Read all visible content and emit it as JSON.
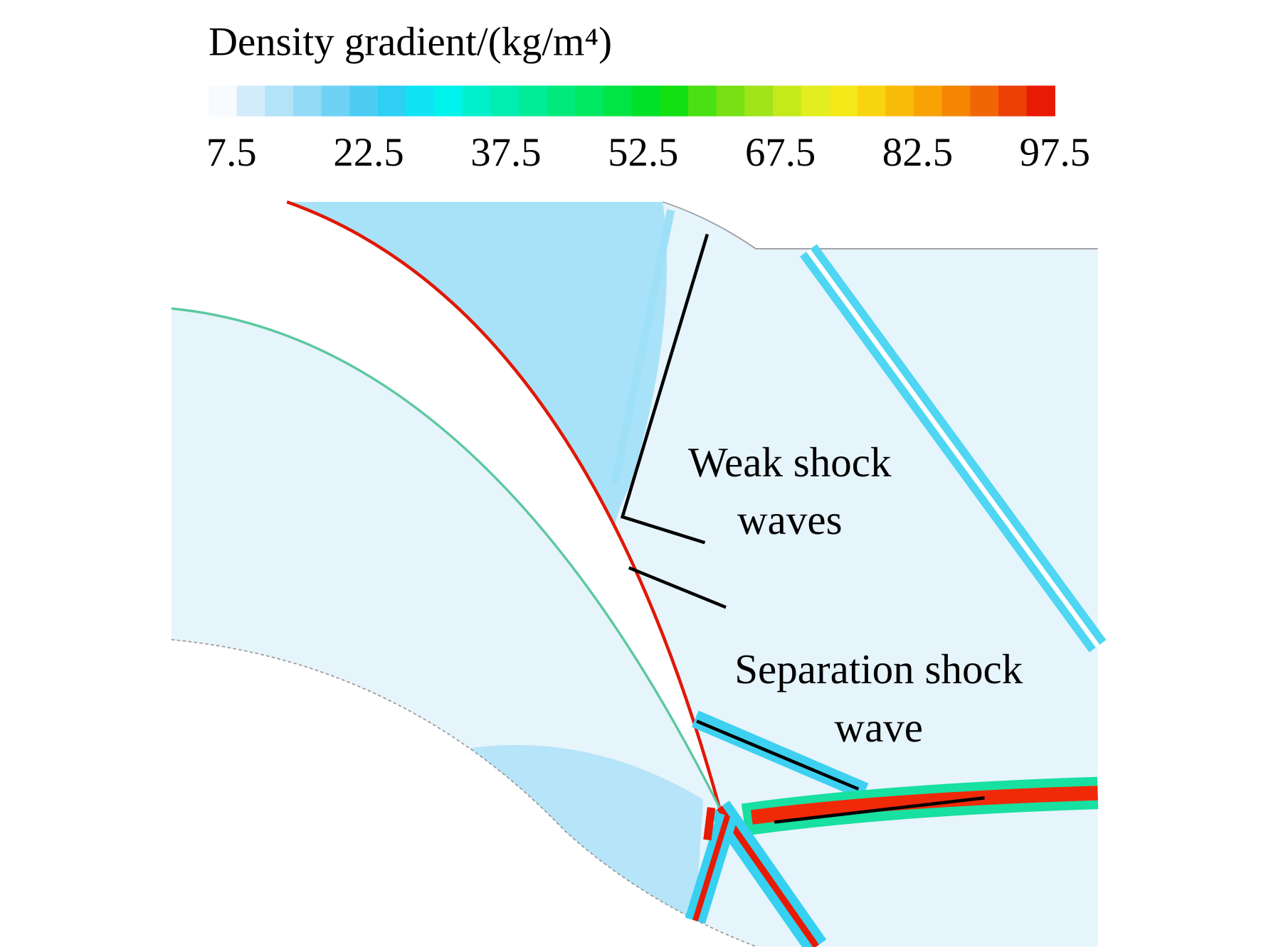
{
  "colorbar": {
    "title": "Density gradient/(kg/m⁴)",
    "range": [
      5,
      97.5
    ],
    "ticks": [
      7.5,
      22.5,
      37.5,
      52.5,
      67.5,
      82.5,
      97.5
    ],
    "colors": [
      "#f7fbfe",
      "#d2ecfb",
      "#b2e3f9",
      "#93daf7",
      "#6fd2f5",
      "#4dcdf4",
      "#2ecff3",
      "#10e4f4",
      "#00f4ec",
      "#00f0cc",
      "#00eeb0",
      "#00ec96",
      "#00ea7c",
      "#00e862",
      "#00e444",
      "#00e028",
      "#12e010",
      "#4ae012",
      "#78e014",
      "#a0e41a",
      "#c4ea1c",
      "#e2ee20",
      "#f4e818",
      "#f8d40e",
      "#f8bc08",
      "#f8a206",
      "#f48604",
      "#f06604",
      "#ec4004",
      "#e81a04"
    ]
  },
  "annotations": [
    {
      "lines": [
        "Weak shock",
        "waves"
      ]
    },
    {
      "lines": [
        "Separation shock",
        "wave"
      ]
    }
  ]
}
